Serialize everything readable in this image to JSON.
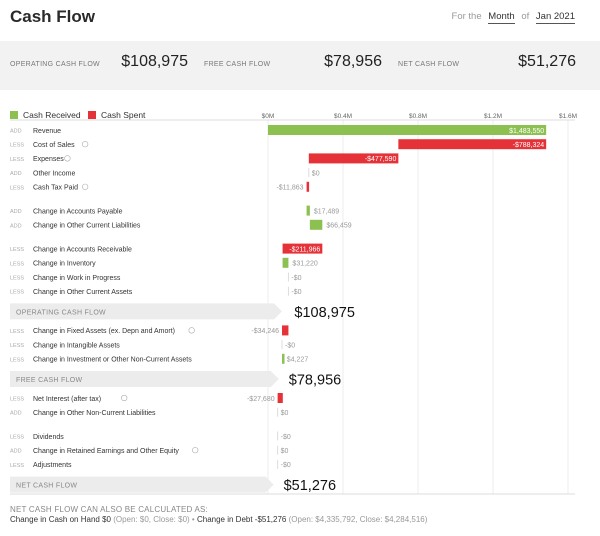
{
  "header": {
    "title": "Cash Flow",
    "for_the": "For the",
    "period": "Month",
    "of": "of",
    "date": "Jan 2021"
  },
  "kpis": [
    {
      "label": "OPERATING CASH FLOW",
      "value": "$108,975"
    },
    {
      "label": "FREE CASH FLOW",
      "value": "$78,956"
    },
    {
      "label": "NET CASH FLOW",
      "value": "$51,276"
    }
  ],
  "legend": {
    "received": "Cash Received",
    "spent": "Cash Spent"
  },
  "colors": {
    "received": "#8cc152",
    "spent": "#e53238",
    "subtotal_band": "#ececec"
  },
  "chart_data": {
    "type": "bar",
    "axis": {
      "ticks": [
        "$0M",
        "$0.4M",
        "$0.8M",
        "$1.2M",
        "$1.6M"
      ],
      "tick_values": [
        0,
        400000,
        800000,
        1200000,
        1600000
      ]
    },
    "rows": [
      {
        "kind": "item",
        "tag": "ADD",
        "label": "Revenue",
        "start": 0,
        "end": 1483550,
        "sign": "received",
        "display": "$1,483,550",
        "inside": true
      },
      {
        "kind": "item",
        "tag": "LESS",
        "label": "Cost of Sales",
        "info": true,
        "start": 695226,
        "end": 1483550,
        "sign": "spent",
        "display": "-$788,324",
        "inside": true
      },
      {
        "kind": "item",
        "tag": "LESS",
        "label": "Expenses",
        "info": true,
        "start": 217636,
        "end": 695226,
        "sign": "spent",
        "display": "-$477,590",
        "inside": true
      },
      {
        "kind": "item",
        "tag": "ADD",
        "label": "Other Income",
        "start": 217636,
        "end": 217636,
        "sign": "none",
        "display": "$0"
      },
      {
        "kind": "item",
        "tag": "LESS",
        "label": "Cash Tax Paid",
        "info": true,
        "start": 205773,
        "end": 217636,
        "sign": "spent",
        "display": "-$11,863"
      },
      {
        "kind": "gap"
      },
      {
        "kind": "item",
        "tag": "ADD",
        "label": "Change in Accounts Payable",
        "start": 205773,
        "end": 223262,
        "sign": "received",
        "display": "$17,489"
      },
      {
        "kind": "item",
        "tag": "ADD",
        "label": "Change in Other Current Liabilities",
        "start": 223262,
        "end": 289721,
        "sign": "received",
        "display": "$66,459"
      },
      {
        "kind": "gap"
      },
      {
        "kind": "item",
        "tag": "LESS",
        "label": "Change in Accounts Receivable",
        "start": 77755,
        "end": 289721,
        "sign": "spent",
        "display": "-$211,966",
        "inside": true
      },
      {
        "kind": "item",
        "tag": "LESS",
        "label": "Change in Inventory",
        "start": 77755,
        "end": 108975,
        "sign": "received",
        "display": "$31,220"
      },
      {
        "kind": "item",
        "tag": "LESS",
        "label": "Change in Work in Progress",
        "start": 108975,
        "end": 108975,
        "sign": "none",
        "display": "-$0"
      },
      {
        "kind": "item",
        "tag": "LESS",
        "label": "Change in Other Current Assets",
        "start": 108975,
        "end": 108975,
        "sign": "none",
        "display": "-$0"
      },
      {
        "kind": "subtotal",
        "label": "OPERATING CASH FLOW",
        "value": 108975,
        "display": "$108,975"
      },
      {
        "kind": "item",
        "tag": "LESS",
        "label": "Change in Fixed Assets (ex. Depn and Amort)",
        "info": true,
        "start": 74729,
        "end": 108975,
        "sign": "spent",
        "display": "-$34,246"
      },
      {
        "kind": "item",
        "tag": "LESS",
        "label": "Change in Intangible Assets",
        "start": 74729,
        "end": 74729,
        "sign": "none",
        "display": "-$0"
      },
      {
        "kind": "item",
        "tag": "LESS",
        "label": "Change in Investment or Other Non-Current Assets",
        "start": 74729,
        "end": 78956,
        "sign": "received",
        "display": "$4,227"
      },
      {
        "kind": "subtotal",
        "label": "FREE CASH FLOW",
        "value": 78956,
        "display": "$78,956"
      },
      {
        "kind": "item",
        "tag": "LESS",
        "label": "Net Interest (after tax)",
        "info": true,
        "start": 51276,
        "end": 78956,
        "sign": "spent",
        "display": "-$27,680"
      },
      {
        "kind": "item",
        "tag": "ADD",
        "label": "Change in Other Non-Current Liabilities",
        "start": 51276,
        "end": 51276,
        "sign": "none",
        "display": "$0"
      },
      {
        "kind": "gap"
      },
      {
        "kind": "item",
        "tag": "LESS",
        "label": "Dividends",
        "start": 51276,
        "end": 51276,
        "sign": "none",
        "display": "-$0"
      },
      {
        "kind": "item",
        "tag": "ADD",
        "label": "Change in Retained Earnings and Other Equity",
        "info": true,
        "start": 51276,
        "end": 51276,
        "sign": "none",
        "display": "$0"
      },
      {
        "kind": "item",
        "tag": "LESS",
        "label": "Adjustments",
        "start": 51276,
        "end": 51276,
        "sign": "none",
        "display": "-$0"
      },
      {
        "kind": "subtotal",
        "label": "NET CASH FLOW",
        "value": 51276,
        "display": "$51,276"
      }
    ]
  },
  "footer": {
    "heading": "NET CASH FLOW CAN ALSO BE CALCULATED AS:",
    "cash_change": "Change in Cash on Hand $0",
    "cash_detail": "(Open: $0, Close: $0)",
    "bullet": "•",
    "debt_change": "Change in Debt -$51,276",
    "debt_detail": "(Open: $4,335,792, Close: $4,284,516)"
  }
}
